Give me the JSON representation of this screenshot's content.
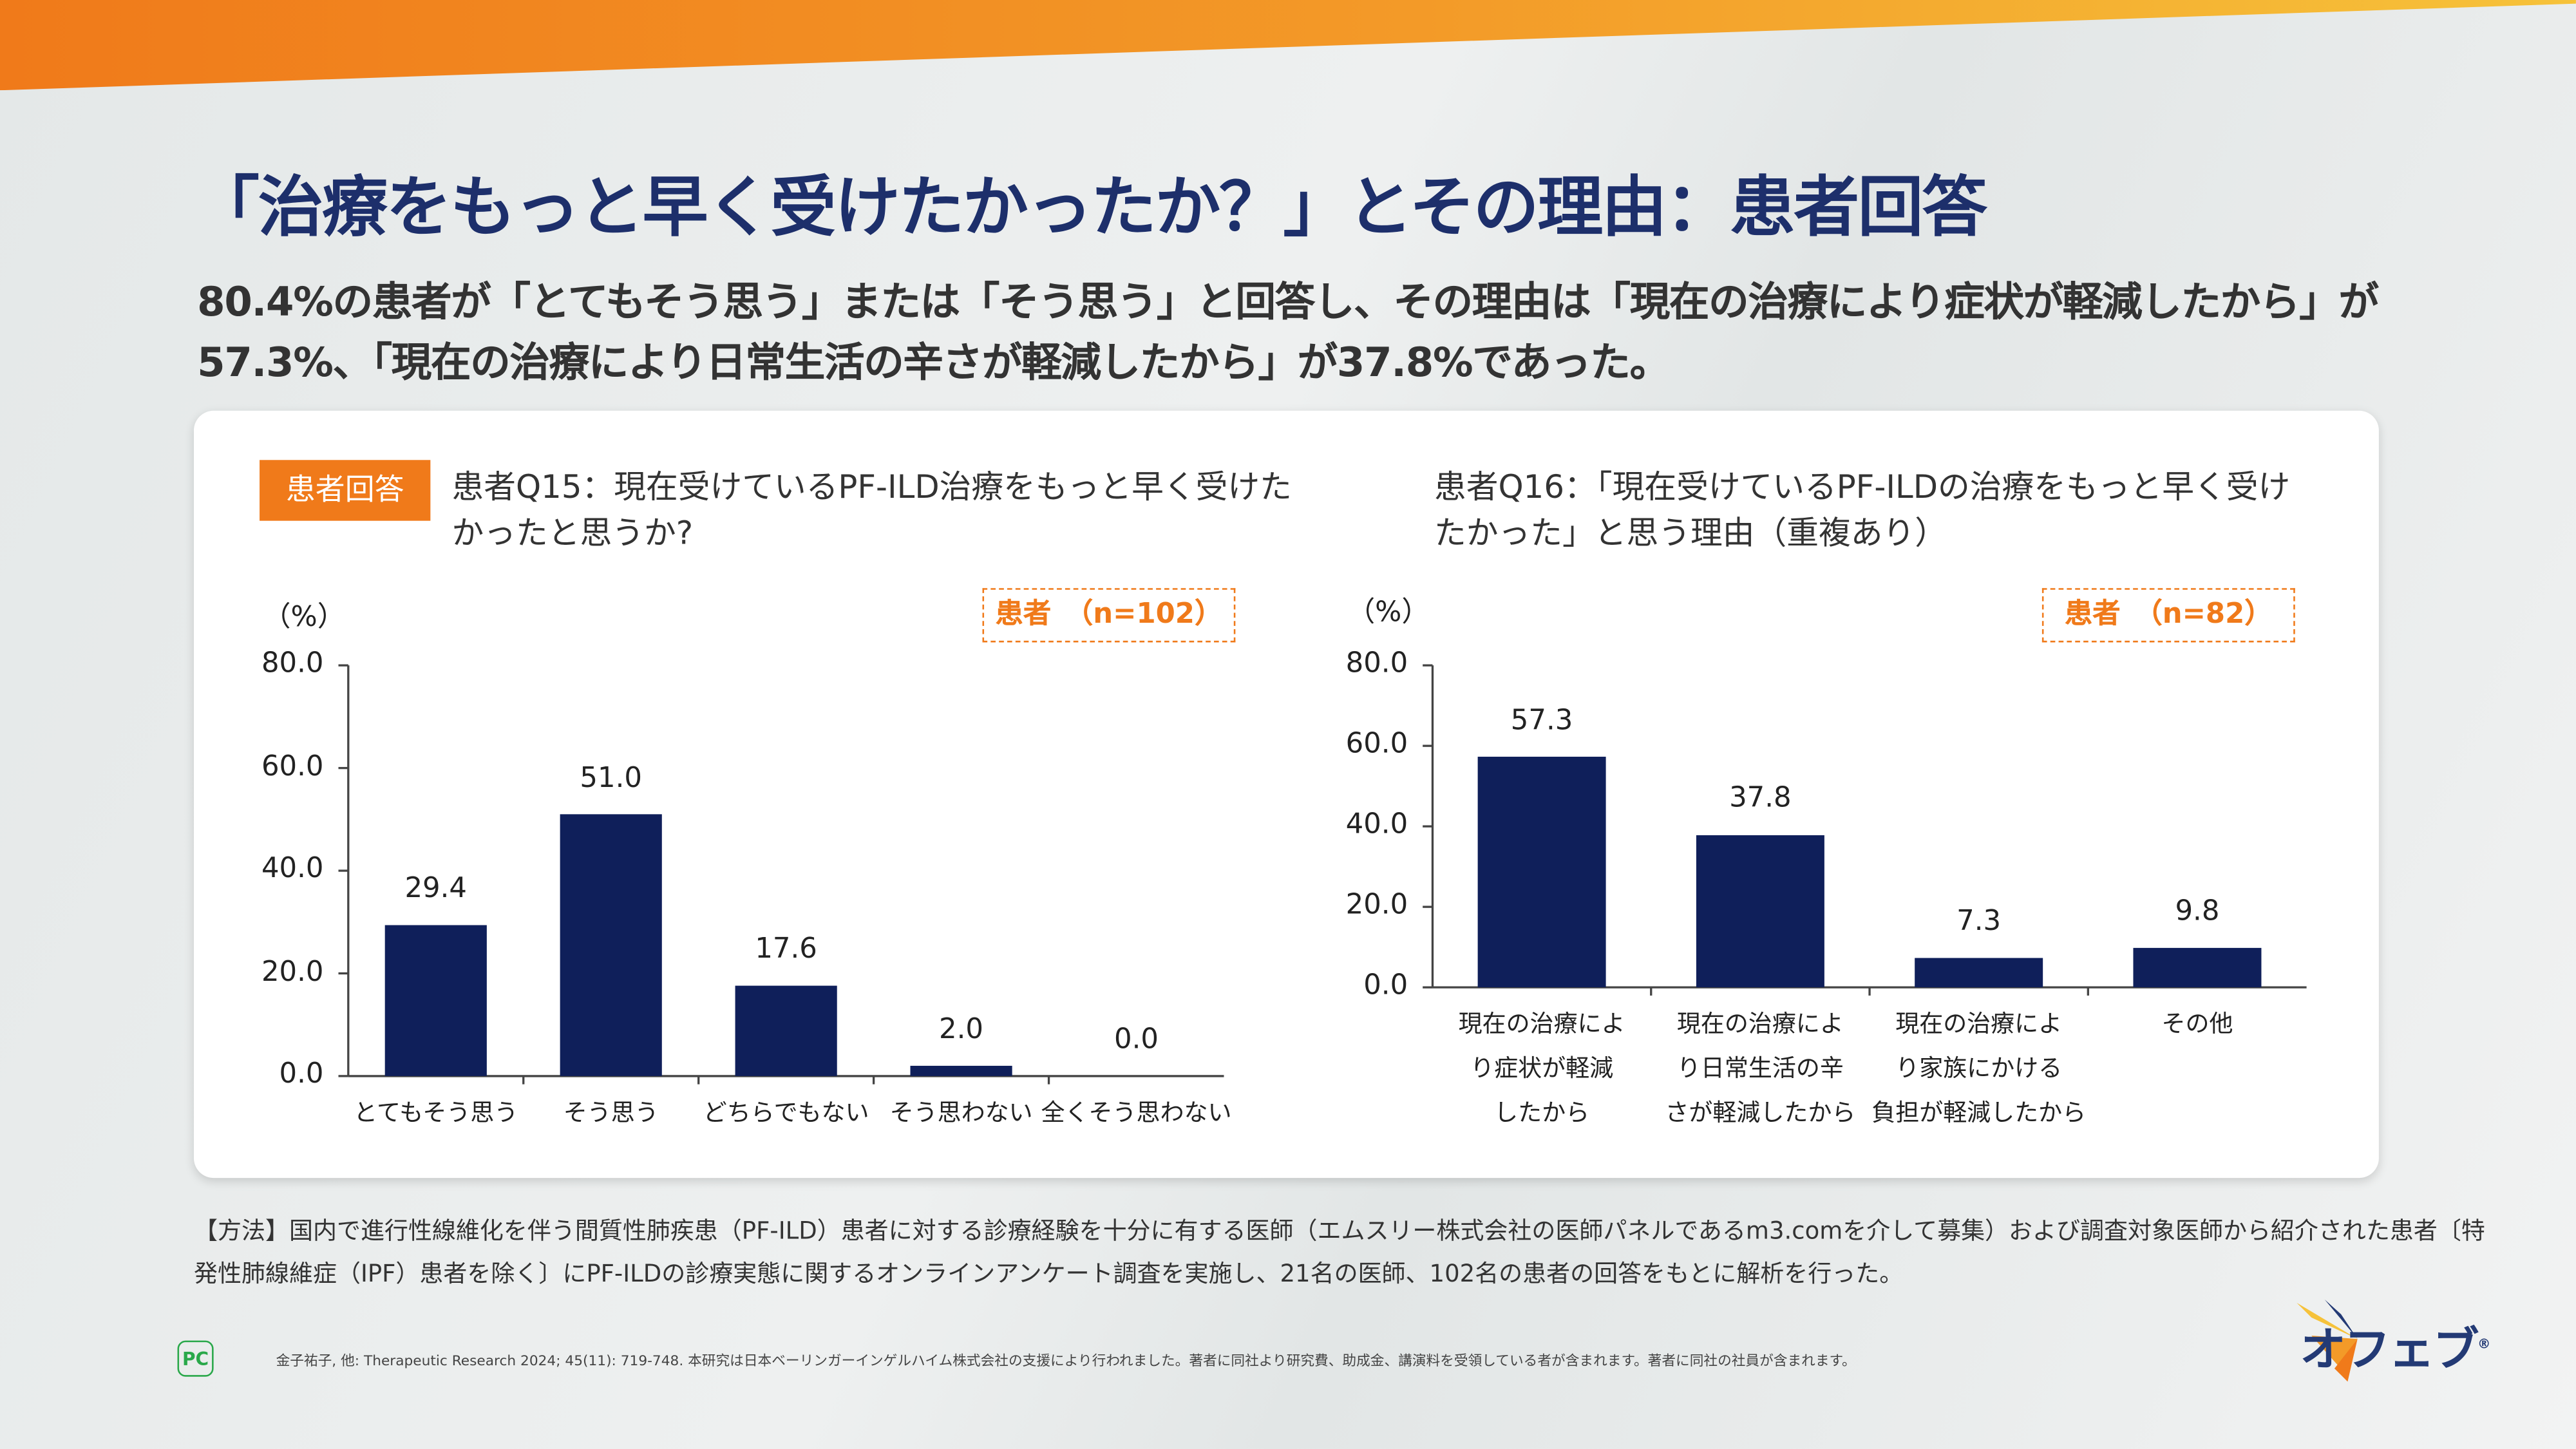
{
  "title": "「治療をもっと早く受けたかったか？」とその理由：患者回答",
  "subtitle": "80.4%の患者が「とてもそう思う」または「そう思う」と回答し、その理由は「現在の治療により症状が軽減したから」が57.3%、「現在の治療により日常生活の辛さが軽減したから」が37.8%であった。",
  "tag": "患者回答",
  "colors": {
    "bar": "#0f1f5a",
    "accent": "#f07a1a",
    "title": "#1d2f6b"
  },
  "chart_data": [
    {
      "type": "bar",
      "title": "患者Q15：現在受けているPF-ILD治療をもっと早く受けたかったと思うか?",
      "ylabel": "（%）",
      "sample": "患者　（n=102）",
      "categories": [
        "とてもそう思う",
        "そう思う",
        "どちらでもない",
        "そう思わない",
        "全くそう思わない"
      ],
      "values": [
        29.4,
        51.0,
        17.6,
        2.0,
        0.0
      ],
      "value_labels": [
        "29.4",
        "51.0",
        "17.6",
        "2.0",
        "0.0"
      ],
      "ylim": [
        0,
        80
      ],
      "yticks": [
        "0.0",
        "20.0",
        "40.0",
        "60.0",
        "80.0"
      ],
      "grid": false
    },
    {
      "type": "bar",
      "title": "患者Q16：「現在受けているPF-ILDの治療をもっと早く受けたかった」と思う理由（重複あり）",
      "ylabel": "（%）",
      "sample": "患者　（n=82）",
      "categories": [
        "現在の治療により症状が軽減したから",
        "現在の治療により日常生活の辛さが軽減したから",
        "現在の治療により家族にかける負担が軽減したから",
        "その他"
      ],
      "category_lines": [
        [
          "現在の治療によ",
          "り症状が軽減",
          "したから"
        ],
        [
          "現在の治療によ",
          "り日常生活の辛",
          "さが軽減したから"
        ],
        [
          "現在の治療によ",
          "り家族にかける",
          "負担が軽減したから"
        ],
        [
          "その他"
        ]
      ],
      "values": [
        57.3,
        37.8,
        7.3,
        9.8
      ],
      "value_labels": [
        "57.3",
        "37.8",
        "7.3",
        "9.8"
      ],
      "ylim": [
        0,
        80
      ],
      "yticks": [
        "0.0",
        "20.0",
        "40.0",
        "60.0",
        "80.0"
      ],
      "grid": false
    }
  ],
  "method": "【方法】国内で進行性線維化を伴う間質性肺疾患（PF-ILD）患者に対する診療経験を十分に有する医師（エムスリー株式会社の医師パネルであるm3.comを介して募集）および調査対象医師から紹介された患者〔特発性肺線維症（IPF）患者を除く〕にPF-ILDの診療実態に関するオンラインアンケート調査を実施し、21名の医師、102名の患者の回答をもとに解析を行った。",
  "footnote": "金子祐子, 他: Therapeutic Research 2024; 45(11): 719-748.  本研究は日本ベーリンガーインゲルハイム株式会社の支援により行われました。著者に同社より研究費、助成金、講演料を受領している者が含まれます。著者に同社の社員が含まれます。",
  "pc_mark": "PC",
  "logo": "オフェブ®"
}
